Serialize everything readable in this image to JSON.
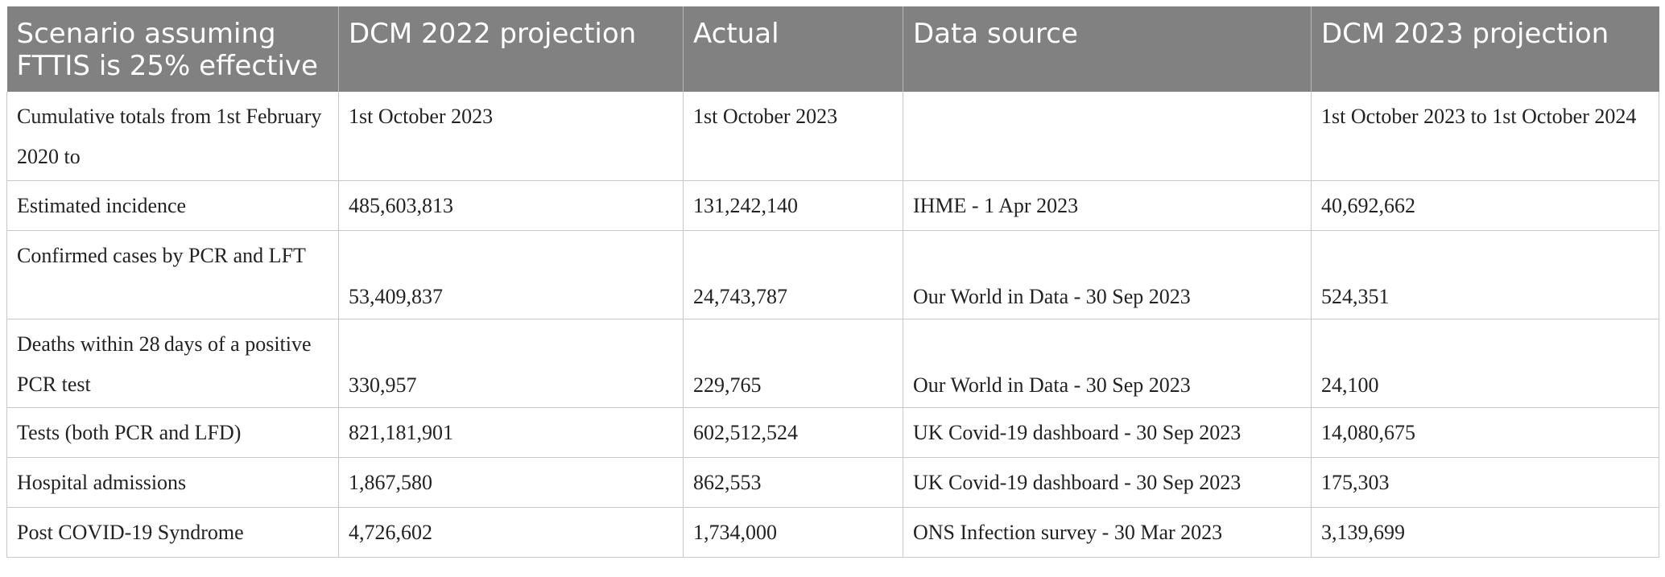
{
  "table": {
    "headers": [
      "Scenario assuming FTTIS is 25% effective",
      "DCM 2022 projection",
      "Actual",
      "Data source",
      "DCM 2023 projection"
    ],
    "rows": [
      {
        "label": "Cumulative totals from 1st February 2020 to",
        "dcm2022": "1st October 2023",
        "actual": "1st October 2023",
        "source": "",
        "dcm2023": "1st October 2023 to 1st October 2024"
      },
      {
        "label": "Estimated incidence",
        "dcm2022": "485,603,813",
        "actual": "131,242,140",
        "source": "IHME - 1 Apr 2023",
        "dcm2023": "40,692,662"
      },
      {
        "label": "Confirmed cases by PCR and LFT",
        "dcm2022": "53,409,837",
        "actual": "24,743,787",
        "source": "Our World in Data - 30 Sep 2023",
        "dcm2023": "524,351"
      },
      {
        "label": "Deaths within 28 days of a positive PCR test",
        "dcm2022": "330,957",
        "actual": "229,765",
        "source": "Our World in Data - 30 Sep 2023",
        "dcm2023": "24,100"
      },
      {
        "label": "Tests (both PCR and LFD)",
        "dcm2022": "821,181,901",
        "actual": "602,512,524",
        "source": "UK Covid-19 dashboard - 30 Sep 2023",
        "dcm2023": "14,080,675"
      },
      {
        "label": "Hospital admissions",
        "dcm2022": "1,867,580",
        "actual": "862,553",
        "source": "UK Covid-19 dashboard - 30 Sep 2023",
        "dcm2023": "175,303"
      },
      {
        "label": "Post COVID-19 Syndrome",
        "dcm2022": "4,726,602",
        "actual": "1,734,000",
        "source": "ONS Infection survey - 30 Mar 2023",
        "dcm2023": "3,139,699"
      }
    ]
  }
}
